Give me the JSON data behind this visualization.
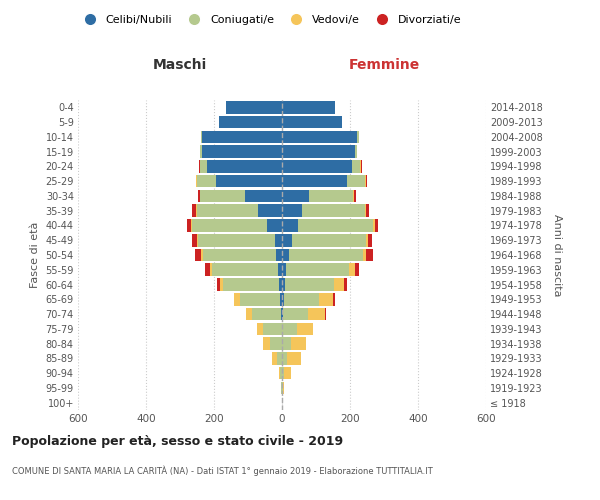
{
  "age_groups": [
    "100+",
    "95-99",
    "90-94",
    "85-89",
    "80-84",
    "75-79",
    "70-74",
    "65-69",
    "60-64",
    "55-59",
    "50-54",
    "45-49",
    "40-44",
    "35-39",
    "30-34",
    "25-29",
    "20-24",
    "15-19",
    "10-14",
    "5-9",
    "0-4"
  ],
  "birth_years": [
    "≤ 1918",
    "1919-1923",
    "1924-1928",
    "1929-1933",
    "1934-1938",
    "1939-1943",
    "1944-1948",
    "1949-1953",
    "1954-1958",
    "1959-1963",
    "1964-1968",
    "1969-1973",
    "1974-1978",
    "1979-1983",
    "1984-1988",
    "1989-1993",
    "1994-1998",
    "1999-2003",
    "2004-2008",
    "2009-2013",
    "2014-2018"
  ],
  "male": {
    "celibi": [
      0,
      0,
      0,
      0,
      0,
      0,
      2,
      5,
      8,
      12,
      18,
      22,
      45,
      70,
      110,
      195,
      220,
      235,
      235,
      185,
      165
    ],
    "coniugati": [
      0,
      2,
      5,
      15,
      35,
      55,
      85,
      120,
      165,
      195,
      215,
      225,
      220,
      180,
      130,
      55,
      20,
      5,
      2,
      0,
      0
    ],
    "vedovi": [
      0,
      2,
      5,
      15,
      20,
      18,
      20,
      15,
      10,
      5,
      5,
      2,
      2,
      2,
      2,
      2,
      2,
      0,
      0,
      0,
      0
    ],
    "divorziati": [
      0,
      0,
      0,
      0,
      0,
      0,
      0,
      2,
      8,
      15,
      18,
      15,
      12,
      12,
      5,
      2,
      2,
      0,
      0,
      0,
      0
    ]
  },
  "female": {
    "nubili": [
      0,
      0,
      0,
      0,
      0,
      0,
      2,
      5,
      8,
      12,
      22,
      28,
      48,
      60,
      80,
      190,
      205,
      215,
      220,
      175,
      155
    ],
    "coniugate": [
      0,
      2,
      5,
      15,
      25,
      45,
      75,
      105,
      145,
      185,
      215,
      220,
      220,
      185,
      130,
      55,
      25,
      5,
      5,
      0,
      0
    ],
    "vedove": [
      0,
      5,
      20,
      40,
      45,
      45,
      48,
      40,
      30,
      18,
      10,
      5,
      5,
      3,
      2,
      2,
      2,
      0,
      0,
      0,
      0
    ],
    "divorziate": [
      0,
      0,
      0,
      0,
      0,
      2,
      5,
      5,
      8,
      12,
      20,
      12,
      8,
      8,
      5,
      3,
      2,
      0,
      0,
      0,
      0
    ]
  },
  "colors": {
    "celibi": "#2E6DA4",
    "coniugati": "#B5C98E",
    "vedovi": "#F5C55A",
    "divorziati": "#CC2222"
  },
  "legend_labels": [
    "Celibi/Nubili",
    "Coniugati/e",
    "Vedovi/e",
    "Divorziati/e"
  ],
  "xlim": 600,
  "title": "Popolazione per età, sesso e stato civile - 2019",
  "subtitle": "COMUNE DI SANTA MARIA LA CARITÀ (NA) - Dati ISTAT 1° gennaio 2019 - Elaborazione TUTTITALIA.IT",
  "ylabel_left": "Fasce di età",
  "ylabel_right": "Anni di nascita",
  "xlabel_maschi": "Maschi",
  "xlabel_femmine": "Femmine",
  "bg_color": "#ffffff",
  "grid_color": "#cccccc"
}
